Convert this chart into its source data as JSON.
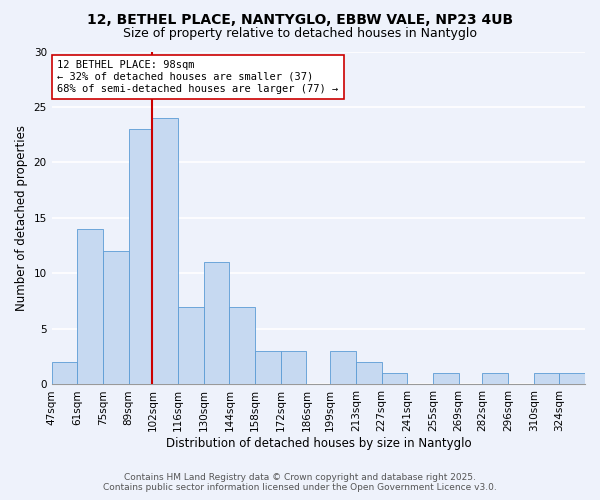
{
  "title": "12, BETHEL PLACE, NANTYGLO, EBBW VALE, NP23 4UB",
  "subtitle": "Size of property relative to detached houses in Nantyglo",
  "xlabel": "Distribution of detached houses by size in Nantyglo",
  "ylabel": "Number of detached properties",
  "bin_labels": [
    "47sqm",
    "61sqm",
    "75sqm",
    "89sqm",
    "102sqm",
    "116sqm",
    "130sqm",
    "144sqm",
    "158sqm",
    "172sqm",
    "186sqm",
    "199sqm",
    "213sqm",
    "227sqm",
    "241sqm",
    "255sqm",
    "269sqm",
    "282sqm",
    "296sqm",
    "310sqm",
    "324sqm"
  ],
  "bin_edges": [
    47,
    61,
    75,
    89,
    102,
    116,
    130,
    144,
    158,
    172,
    186,
    199,
    213,
    227,
    241,
    255,
    269,
    282,
    296,
    310,
    324,
    338
  ],
  "counts": [
    2,
    14,
    12,
    23,
    24,
    7,
    11,
    7,
    3,
    3,
    0,
    3,
    2,
    1,
    0,
    1,
    0,
    1,
    0,
    1,
    1
  ],
  "bar_color": "#c6d9f1",
  "bar_edge_color": "#5b9bd5",
  "vline_x": 102,
  "vline_color": "#cc0000",
  "annotation_title": "12 BETHEL PLACE: 98sqm",
  "annotation_line1": "← 32% of detached houses are smaller (37)",
  "annotation_line2": "68% of semi-detached houses are larger (77) →",
  "annotation_box_color": "#ffffff",
  "annotation_box_edge": "#cc0000",
  "ylim": [
    0,
    30
  ],
  "yticks": [
    0,
    5,
    10,
    15,
    20,
    25,
    30
  ],
  "footer1": "Contains HM Land Registry data © Crown copyright and database right 2025.",
  "footer2": "Contains public sector information licensed under the Open Government Licence v3.0.",
  "bg_color": "#eef2fb",
  "plot_bg_color": "#eef2fb",
  "grid_color": "#ffffff",
  "title_fontsize": 10,
  "subtitle_fontsize": 9,
  "axis_label_fontsize": 8.5,
  "tick_fontsize": 7.5,
  "annotation_fontsize": 7.5,
  "footer_fontsize": 6.5
}
